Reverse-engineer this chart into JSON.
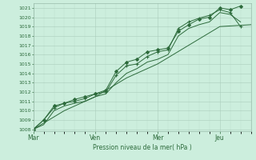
{
  "bg_color": "#cceedd",
  "grid_color_major": "#aaccbb",
  "grid_color_minor": "#bbddcc",
  "line_color": "#2d6b3c",
  "xlabel": "Pression niveau de la mer( hPa )",
  "ylabel_ticks": [
    1008,
    1009,
    1010,
    1011,
    1012,
    1013,
    1014,
    1015,
    1016,
    1017,
    1018,
    1019,
    1020,
    1021
  ],
  "ylim": [
    1007.8,
    1021.5
  ],
  "day_labels": [
    "Mar",
    "Ven",
    "Mer",
    "Jeu"
  ],
  "day_positions": [
    0,
    3,
    6,
    9
  ],
  "xlim": [
    0,
    10.5
  ],
  "lines": [
    {
      "x": [
        0,
        0.5,
        1.0,
        1.5,
        2.0,
        2.5,
        3.0,
        3.5,
        4.0,
        4.5,
        5.0,
        5.5,
        6.0,
        6.5,
        7.0,
        7.5,
        8.0,
        8.5,
        9.0,
        9.5,
        10.0
      ],
      "y": [
        1008.0,
        1009.0,
        1010.5,
        1010.8,
        1011.2,
        1011.5,
        1011.8,
        1012.2,
        1014.2,
        1015.2,
        1015.5,
        1016.3,
        1016.5,
        1016.7,
        1018.5,
        1019.2,
        1019.8,
        1020.0,
        1021.0,
        1020.8,
        1021.2
      ],
      "has_markers": true,
      "marker": "D",
      "markersize": 2.0,
      "lw": 0.7
    },
    {
      "x": [
        0,
        0.5,
        1.0,
        1.5,
        2.0,
        2.5,
        3.0,
        3.5,
        4.0,
        4.5,
        5.0,
        5.5,
        6.0,
        6.5,
        7.0,
        7.5,
        8.0,
        8.5,
        9.0,
        9.5,
        10.0
      ],
      "y": [
        1008.0,
        1009.0,
        1010.3,
        1010.8,
        1011.0,
        1011.3,
        1011.8,
        1012.0,
        1013.8,
        1014.8,
        1015.0,
        1015.8,
        1016.3,
        1016.5,
        1018.8,
        1019.5,
        1019.9,
        1020.2,
        1020.8,
        1020.5,
        1019.0
      ],
      "has_markers": true,
      "marker": "+",
      "markersize": 3.5,
      "lw": 0.7
    },
    {
      "x": [
        0,
        0.5,
        1.0,
        1.5,
        2.0,
        2.5,
        3.0,
        3.5,
        4.0,
        4.5,
        5.0,
        5.5,
        6.0,
        6.5,
        7.0,
        7.5,
        8.0,
        8.5,
        9.0,
        9.5,
        10.0
      ],
      "y": [
        1008.0,
        1008.5,
        1010.0,
        1010.5,
        1010.8,
        1011.0,
        1011.5,
        1011.8,
        1013.0,
        1014.0,
        1014.5,
        1015.2,
        1015.5,
        1016.0,
        1018.0,
        1018.8,
        1019.2,
        1019.5,
        1020.5,
        1020.3,
        1019.5
      ],
      "has_markers": false,
      "marker": null,
      "markersize": 0,
      "lw": 0.7
    },
    {
      "x": [
        0,
        1.5,
        3.0,
        4.5,
        6.0,
        7.5,
        9.0,
        10.5
      ],
      "y": [
        1008.0,
        1010.0,
        1011.5,
        1013.5,
        1015.0,
        1017.0,
        1019.0,
        1019.2
      ],
      "has_markers": false,
      "marker": null,
      "markersize": 0,
      "lw": 0.7
    }
  ]
}
